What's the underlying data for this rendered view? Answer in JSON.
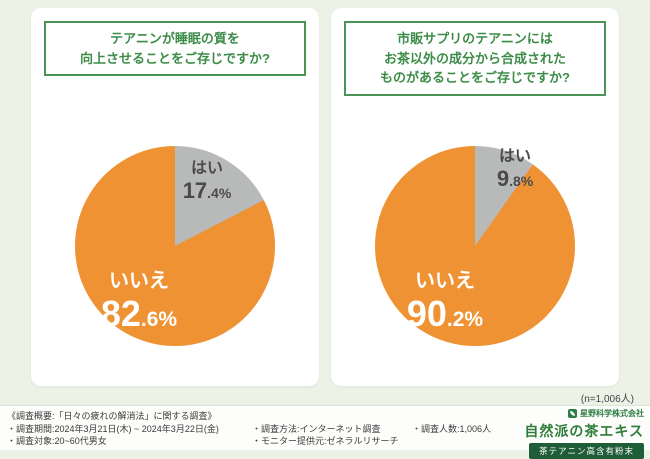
{
  "page": {
    "background": "#edf2e6",
    "n_note": "(n=1,006人)"
  },
  "chart_data": [
    {
      "type": "pie",
      "title": "テアニンが睡眠の質を\n向上させることをご存じですか?",
      "labels": [
        "はい",
        "いいえ"
      ],
      "values": [
        17.4,
        82.6
      ],
      "colors": [
        "#b7bab8",
        "#ef9234"
      ],
      "unit": "%",
      "start": "top",
      "direction": "clockwise",
      "legend_position": "on-slice"
    },
    {
      "type": "pie",
      "title": "市販サプリのテアニンには\nお茶以外の成分から合成された\nものがあることをご存じですか?",
      "labels": [
        "はい",
        "いいえ"
      ],
      "values": [
        9.8,
        90.2
      ],
      "colors": [
        "#b7bab8",
        "#ef9234"
      ],
      "unit": "%",
      "start": "top",
      "direction": "clockwise",
      "legend_position": "on-slice"
    }
  ],
  "footer": {
    "survey_title": "《調査概要:「日々の疲れの解消法」に関する調査》",
    "period": "・調査期間:2024年3月21日(木) ~ 2024年3月22日(金)",
    "audience": "・調査対象:20~60代男女",
    "method": "・調査方法:インターネット調査",
    "monitor": "・モニター提供元:ゼネラルリサーチ",
    "count": "・調査人数:1,006人"
  },
  "brand": {
    "company": "星野科学株式会社",
    "product": "自然派の茶エキス",
    "ribbon": "茶テアニン高含有粉末"
  }
}
